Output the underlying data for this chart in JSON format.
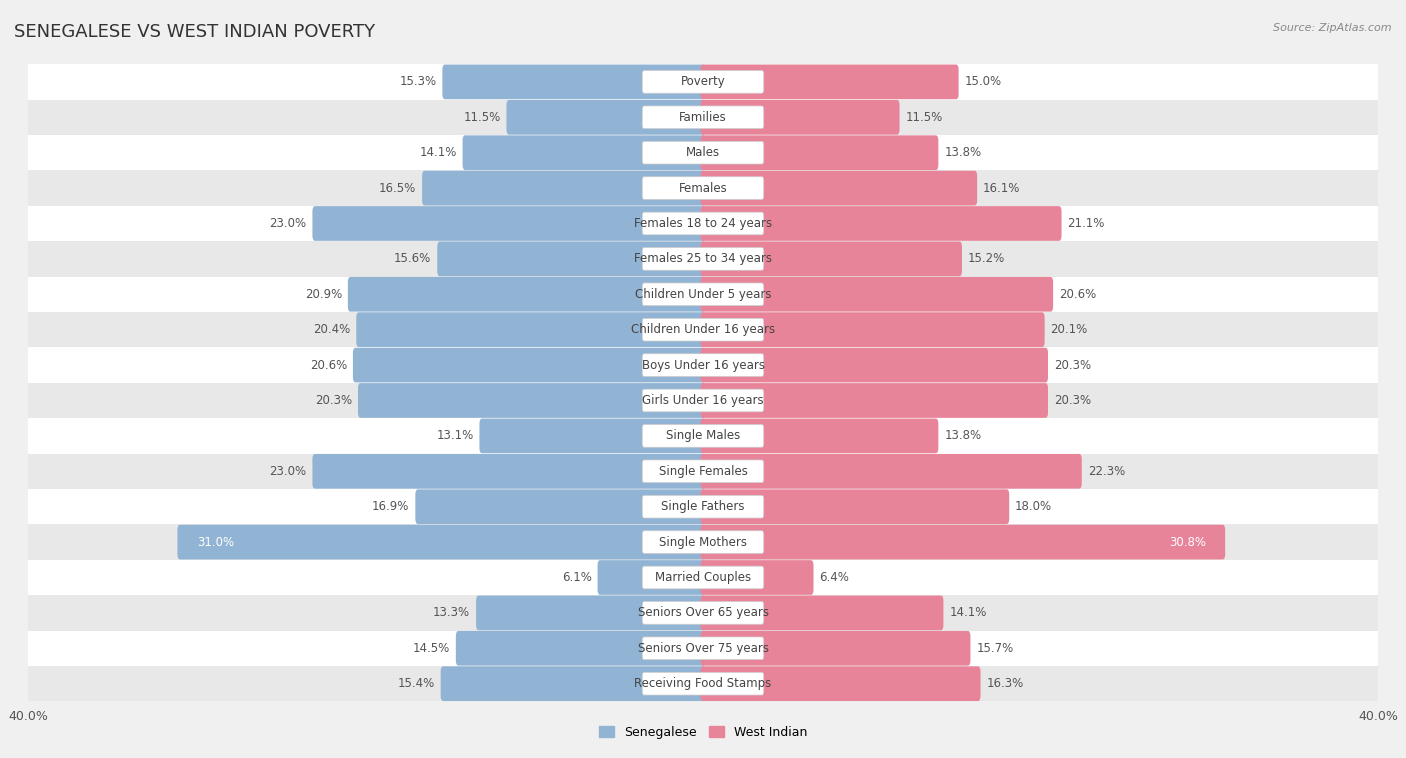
{
  "title": "SENEGALESE VS WEST INDIAN POVERTY",
  "source": "Source: ZipAtlas.com",
  "categories": [
    "Poverty",
    "Families",
    "Males",
    "Females",
    "Females 18 to 24 years",
    "Females 25 to 34 years",
    "Children Under 5 years",
    "Children Under 16 years",
    "Boys Under 16 years",
    "Girls Under 16 years",
    "Single Males",
    "Single Females",
    "Single Fathers",
    "Single Mothers",
    "Married Couples",
    "Seniors Over 65 years",
    "Seniors Over 75 years",
    "Receiving Food Stamps"
  ],
  "senegalese": [
    15.3,
    11.5,
    14.1,
    16.5,
    23.0,
    15.6,
    20.9,
    20.4,
    20.6,
    20.3,
    13.1,
    23.0,
    16.9,
    31.0,
    6.1,
    13.3,
    14.5,
    15.4
  ],
  "west_indian": [
    15.0,
    11.5,
    13.8,
    16.1,
    21.1,
    15.2,
    20.6,
    20.1,
    20.3,
    20.3,
    13.8,
    22.3,
    18.0,
    30.8,
    6.4,
    14.1,
    15.7,
    16.3
  ],
  "senegalese_color": "#92b4d4",
  "west_indian_color": "#e8849a",
  "background_color": "#f0f0f0",
  "row_bg_white": "#ffffff",
  "row_bg_gray": "#e8e8e8",
  "axis_max": 40.0,
  "bar_height": 0.68,
  "title_fontsize": 13,
  "label_fontsize": 8.5,
  "value_fontsize": 8.5,
  "tick_fontsize": 9,
  "legend_fontsize": 9
}
